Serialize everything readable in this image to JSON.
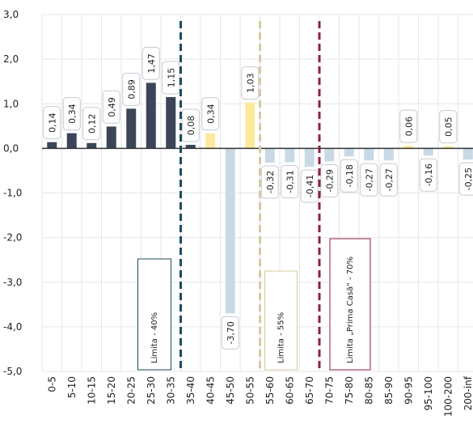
{
  "chart_data": {
    "type": "bar",
    "categories": [
      "0-5",
      "5-10",
      "10-15",
      "15-20",
      "20-25",
      "25-30",
      "30-35",
      "35-40",
      "40-45",
      "45-50",
      "50-55",
      "55-60",
      "60-65",
      "65-70",
      "70-75",
      "75-80",
      "80-85",
      "85-90",
      "90-95",
      "95-100",
      "100-200",
      "200-inf"
    ],
    "values": [
      0.14,
      0.34,
      0.12,
      0.49,
      0.89,
      1.47,
      1.15,
      0.08,
      0.34,
      -3.7,
      1.03,
      -0.32,
      -0.31,
      -0.41,
      -0.29,
      -0.18,
      -0.27,
      -0.27,
      0.06,
      -0.16,
      0.05,
      -0.25
    ],
    "value_labels": [
      "0,14",
      "0,34",
      "0,12",
      "0,49",
      "0,89",
      "1,47",
      "1,15",
      "0,08",
      "0,34",
      "-3,70",
      "1,03",
      "-0,32",
      "-0,31",
      "-0,41",
      "-0,29",
      "-0,18",
      "-0,27",
      "-0,27",
      "0,06",
      "-0,16",
      "0,05",
      "-0,25"
    ],
    "colors": [
      "#3b4557",
      "#3b4557",
      "#3b4557",
      "#3b4557",
      "#3b4557",
      "#3b4557",
      "#3b4557",
      "#3b4557",
      "#fde99c",
      "#c8d9e4",
      "#fde99c",
      "#c8d9e4",
      "#c8d9e4",
      "#c8d9e4",
      "#c8d9e4",
      "#c8d9e4",
      "#c8d9e4",
      "#c8d9e4",
      "#fde99c",
      "#c8d9e4",
      "#fde99c",
      "#c8d9e4"
    ],
    "ylim": [
      -5,
      3
    ],
    "yticks": [
      {
        "value": -5,
        "label": "-5,0"
      },
      {
        "value": -4,
        "label": "-4,0"
      },
      {
        "value": -3,
        "label": "-3,0"
      },
      {
        "value": -2,
        "label": "-2,0"
      },
      {
        "value": -1,
        "label": "-1,0"
      },
      {
        "value": 0,
        "label": "0,0"
      },
      {
        "value": 1,
        "label": "1,0"
      },
      {
        "value": 2,
        "label": "2,0"
      },
      {
        "value": 3,
        "label": "3,0"
      }
    ],
    "grid": true,
    "limits": [
      {
        "before": "35-40",
        "color": "#1d4c5e",
        "label": "Limita - 40%"
      },
      {
        "before": "55-60",
        "color": "#d8c8a2",
        "label": "Limita - 55%"
      },
      {
        "before": "70-75",
        "color": "#8a2142",
        "label": "Limita „Prima Casă\" - 70%"
      }
    ]
  }
}
